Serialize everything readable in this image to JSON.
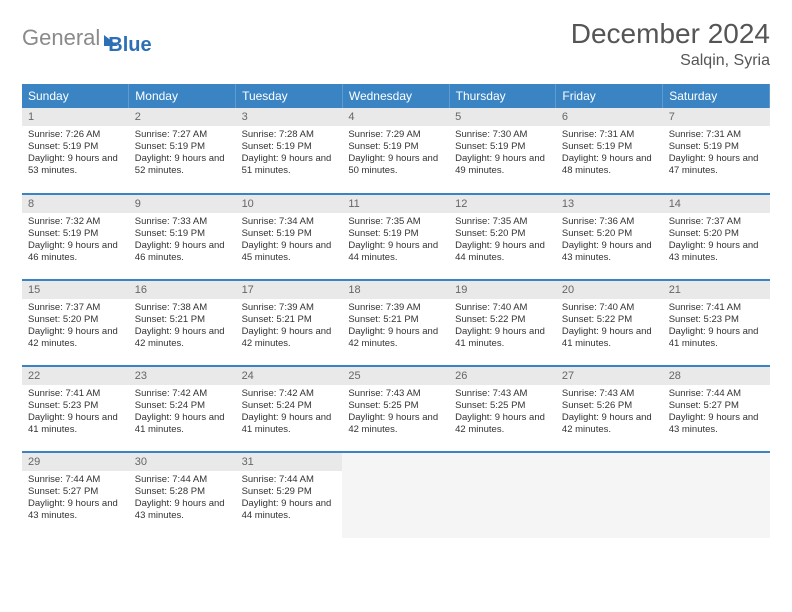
{
  "brand": {
    "part1": "General",
    "part2": "Blue"
  },
  "title": "December 2024",
  "location": "Salqin, Syria",
  "colors": {
    "header_bg": "#3a84c4",
    "header_text": "#ffffff",
    "daynum_bg": "#e9e9e9",
    "row_divider": "#3a84c4",
    "logo_gray": "#8a8a8a",
    "logo_blue": "#2d6fb5"
  },
  "daynames": [
    "Sunday",
    "Monday",
    "Tuesday",
    "Wednesday",
    "Thursday",
    "Friday",
    "Saturday"
  ],
  "weeks": [
    [
      {
        "n": "1",
        "sr": "7:26 AM",
        "ss": "5:19 PM",
        "m": "53"
      },
      {
        "n": "2",
        "sr": "7:27 AM",
        "ss": "5:19 PM",
        "m": "52"
      },
      {
        "n": "3",
        "sr": "7:28 AM",
        "ss": "5:19 PM",
        "m": "51"
      },
      {
        "n": "4",
        "sr": "7:29 AM",
        "ss": "5:19 PM",
        "m": "50"
      },
      {
        "n": "5",
        "sr": "7:30 AM",
        "ss": "5:19 PM",
        "m": "49"
      },
      {
        "n": "6",
        "sr": "7:31 AM",
        "ss": "5:19 PM",
        "m": "48"
      },
      {
        "n": "7",
        "sr": "7:31 AM",
        "ss": "5:19 PM",
        "m": "47"
      }
    ],
    [
      {
        "n": "8",
        "sr": "7:32 AM",
        "ss": "5:19 PM",
        "m": "46"
      },
      {
        "n": "9",
        "sr": "7:33 AM",
        "ss": "5:19 PM",
        "m": "46"
      },
      {
        "n": "10",
        "sr": "7:34 AM",
        "ss": "5:19 PM",
        "m": "45"
      },
      {
        "n": "11",
        "sr": "7:35 AM",
        "ss": "5:19 PM",
        "m": "44"
      },
      {
        "n": "12",
        "sr": "7:35 AM",
        "ss": "5:20 PM",
        "m": "44"
      },
      {
        "n": "13",
        "sr": "7:36 AM",
        "ss": "5:20 PM",
        "m": "43"
      },
      {
        "n": "14",
        "sr": "7:37 AM",
        "ss": "5:20 PM",
        "m": "43"
      }
    ],
    [
      {
        "n": "15",
        "sr": "7:37 AM",
        "ss": "5:20 PM",
        "m": "42"
      },
      {
        "n": "16",
        "sr": "7:38 AM",
        "ss": "5:21 PM",
        "m": "42"
      },
      {
        "n": "17",
        "sr": "7:39 AM",
        "ss": "5:21 PM",
        "m": "42"
      },
      {
        "n": "18",
        "sr": "7:39 AM",
        "ss": "5:21 PM",
        "m": "42"
      },
      {
        "n": "19",
        "sr": "7:40 AM",
        "ss": "5:22 PM",
        "m": "41"
      },
      {
        "n": "20",
        "sr": "7:40 AM",
        "ss": "5:22 PM",
        "m": "41"
      },
      {
        "n": "21",
        "sr": "7:41 AM",
        "ss": "5:23 PM",
        "m": "41"
      }
    ],
    [
      {
        "n": "22",
        "sr": "7:41 AM",
        "ss": "5:23 PM",
        "m": "41"
      },
      {
        "n": "23",
        "sr": "7:42 AM",
        "ss": "5:24 PM",
        "m": "41"
      },
      {
        "n": "24",
        "sr": "7:42 AM",
        "ss": "5:24 PM",
        "m": "41"
      },
      {
        "n": "25",
        "sr": "7:43 AM",
        "ss": "5:25 PM",
        "m": "42"
      },
      {
        "n": "26",
        "sr": "7:43 AM",
        "ss": "5:25 PM",
        "m": "42"
      },
      {
        "n": "27",
        "sr": "7:43 AM",
        "ss": "5:26 PM",
        "m": "42"
      },
      {
        "n": "28",
        "sr": "7:44 AM",
        "ss": "5:27 PM",
        "m": "43"
      }
    ],
    [
      {
        "n": "29",
        "sr": "7:44 AM",
        "ss": "5:27 PM",
        "m": "43"
      },
      {
        "n": "30",
        "sr": "7:44 AM",
        "ss": "5:28 PM",
        "m": "43"
      },
      {
        "n": "31",
        "sr": "7:44 AM",
        "ss": "5:29 PM",
        "m": "44"
      },
      null,
      null,
      null,
      null
    ]
  ],
  "strings": {
    "sunrise": "Sunrise: ",
    "sunset": "Sunset: ",
    "daylight_prefix": "Daylight: 9 hours and ",
    "daylight_suffix": " minutes."
  }
}
